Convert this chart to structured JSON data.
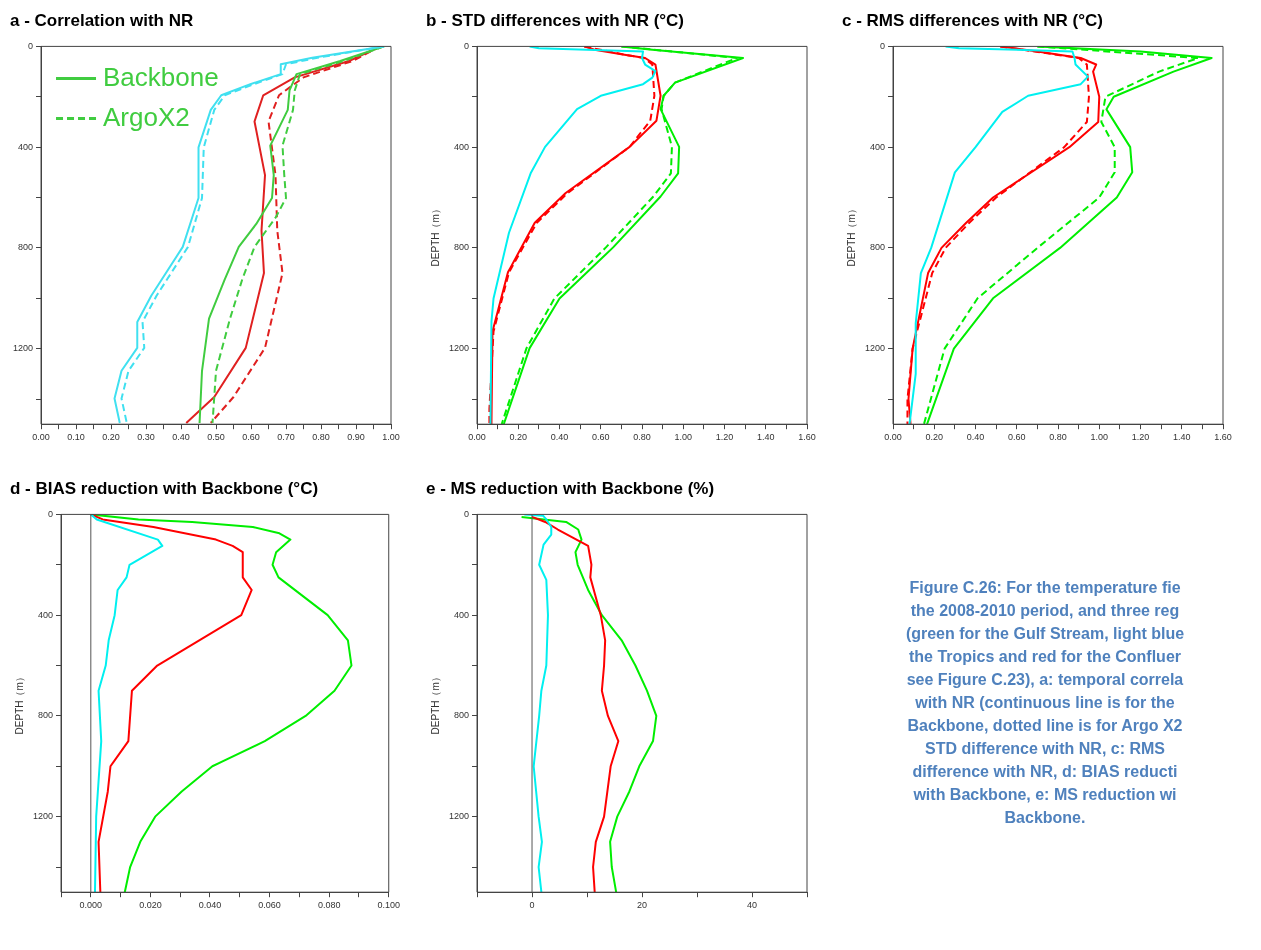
{
  "chart_data": [
    {
      "type": "line",
      "title": "a - Correlation with NR",
      "legend": "top left",
      "marker": "none",
      "xlim": [
        0,
        1
      ],
      "ylim": [
        1500,
        0
      ],
      "xticks": [
        {
          "value": 0,
          "label": "0.00"
        },
        {
          "value": 0.05,
          "label": null
        },
        {
          "value": 0.1,
          "label": "0.10"
        },
        {
          "value": 0.15,
          "label": null
        },
        {
          "value": 0.2,
          "label": "0.20"
        },
        {
          "value": 0.25,
          "label": null
        },
        {
          "value": 0.3,
          "label": "0.30"
        },
        {
          "value": 0.35,
          "label": null
        },
        {
          "value": 0.4,
          "label": "0.40"
        },
        {
          "value": 0.45,
          "label": null
        },
        {
          "value": 0.5,
          "label": "0.50"
        },
        {
          "value": 0.55,
          "label": null
        },
        {
          "value": 0.6,
          "label": "0.60"
        },
        {
          "value": 0.65,
          "label": null
        },
        {
          "value": 0.7,
          "label": "0.70"
        },
        {
          "value": 0.75,
          "label": null
        },
        {
          "value": 0.8,
          "label": "0.80"
        },
        {
          "value": 0.85,
          "label": null
        },
        {
          "value": 0.9,
          "label": "0.90"
        },
        {
          "value": 0.95,
          "label": null
        },
        {
          "value": 1,
          "label": "1.00"
        }
      ],
      "yticks": [
        0,
        {
          "value": 200,
          "label": null
        },
        400,
        {
          "value": 600,
          "label": null
        },
        800,
        {
          "value": 1000,
          "label": null
        },
        1200,
        {
          "value": 1400,
          "label": null
        }
      ],
      "series": [
        {
          "color": "#40e0f0",
          "line_style": "solid",
          "x": [
            0.98,
            0.775,
            0.685,
            0.685,
            0.6,
            0.515,
            0.485,
            0.45,
            0.45,
            0.405,
            0.315,
            0.275,
            0.275,
            0.23,
            0.21,
            0.225
          ],
          "values": [
            0,
            45,
            71,
            110,
            149,
            194,
            252,
            401,
            602,
            796,
            990,
            1094,
            1197,
            1288,
            1398,
            1495
          ]
        },
        {
          "color": "#40e0f0",
          "line_style": "dashed",
          "x": [
            0.98,
            0.79,
            0.7,
            0.69,
            0.61,
            0.525,
            0.495,
            0.465,
            0.46,
            0.42,
            0.33,
            0.29,
            0.295,
            0.25,
            0.23,
            0.245
          ],
          "values": [
            0,
            45,
            71,
            110,
            149,
            194,
            252,
            401,
            602,
            796,
            990,
            1094,
            1197,
            1288,
            1398,
            1495
          ]
        },
        {
          "name": "Backbone",
          "color": "#40cc40",
          "line_style": "solid",
          "x": [
            0.98,
            0.855,
            0.73,
            0.71,
            0.705,
            0.655,
            0.665,
            0.66,
            0.615,
            0.565,
            0.525,
            0.48,
            0.46,
            0.453
          ],
          "values": [
            0,
            58,
            110,
            175,
            252,
            394,
            511,
            602,
            705,
            796,
            925,
            1081,
            1288,
            1495
          ]
        },
        {
          "name": "ArgoX2",
          "color": "#40cc40",
          "line_style": "dashed",
          "x": [
            0.98,
            0.865,
            0.74,
            0.725,
            0.72,
            0.69,
            0.695,
            0.7,
            0.67,
            0.61,
            0.575,
            0.54,
            0.5,
            0.49
          ],
          "values": [
            0,
            58,
            110,
            175,
            252,
            394,
            511,
            602,
            680,
            796,
            925,
            1081,
            1288,
            1495
          ]
        },
        {
          "color": "#e02020",
          "line_style": "solid",
          "x": [
            0.97,
            0.88,
            0.725,
            0.635,
            0.61,
            0.64,
            0.63,
            0.637,
            0.585,
            0.495,
            0.415
          ],
          "values": [
            0,
            58,
            123,
            194,
            298,
            511,
            731,
            900,
            1197,
            1392,
            1495
          ]
        },
        {
          "color": "#e02020",
          "line_style": "dashed",
          "x": [
            0.97,
            0.89,
            0.75,
            0.68,
            0.65,
            0.67,
            0.675,
            0.69,
            0.64,
            0.55,
            0.485
          ],
          "values": [
            0,
            58,
            123,
            194,
            298,
            511,
            731,
            900,
            1197,
            1392,
            1495
          ]
        }
      ]
    },
    {
      "type": "line",
      "title": "b - STD differences with NR (°C)",
      "ylabel": "DEPTH（m）",
      "marker": "none",
      "xlim": [
        0,
        1.6
      ],
      "ylim": [
        1500,
        0
      ],
      "xticks": [
        {
          "value": 0,
          "label": "0.00"
        },
        {
          "value": 0.1,
          "label": null
        },
        {
          "value": 0.2,
          "label": "0.20"
        },
        {
          "value": 0.3,
          "label": null
        },
        {
          "value": 0.4,
          "label": "0.40"
        },
        {
          "value": 0.5,
          "label": null
        },
        {
          "value": 0.6,
          "label": "0.60"
        },
        {
          "value": 0.7,
          "label": null
        },
        {
          "value": 0.8,
          "label": "0.80"
        },
        {
          "value": 0.9,
          "label": null
        },
        {
          "value": 1,
          "label": "1.00"
        },
        {
          "value": 1.1,
          "label": null
        },
        {
          "value": 1.2,
          "label": "1.20"
        },
        {
          "value": 1.3,
          "label": null
        },
        {
          "value": 1.4,
          "label": "1.40"
        },
        {
          "value": 1.5,
          "label": null
        },
        {
          "value": 1.6,
          "label": "1.60"
        }
      ],
      "yticks": [
        0,
        {
          "value": 200,
          "label": null
        },
        400,
        {
          "value": 600,
          "label": null
        },
        800,
        {
          "value": 1000,
          "label": null
        },
        1200,
        {
          "value": 1400,
          "label": null
        }
      ],
      "series": [
        {
          "color": "#00f0f0",
          "line_style": "solid",
          "x": [
            0.255,
            0.3,
            0.805,
            0.8,
            0.815,
            0.865,
            0.85,
            0.805,
            0.6,
            0.485,
            0.33,
            0.26,
            0.155,
            0.08,
            0.07,
            0.065
          ],
          "values": [
            0,
            7,
            20,
            46,
            72,
            98,
            124,
            150,
            196,
            249,
            399,
            504,
            740,
            1001,
            1093,
            1499
          ]
        },
        {
          "color": "#ff0000",
          "line_style": "solid",
          "x": [
            0.52,
            0.57,
            0.715,
            0.815,
            0.865,
            0.89,
            0.87,
            0.74,
            0.43,
            0.28,
            0.15,
            0.075,
            0.07
          ],
          "values": [
            0,
            13,
            33,
            46,
            72,
            196,
            295,
            399,
            582,
            700,
            897,
            1132,
            1499
          ]
        },
        {
          "color": "#ff0000",
          "line_style": "dashed",
          "x": [
            0.52,
            0.715,
            0.81,
            0.85,
            0.86,
            0.84,
            0.74,
            0.44,
            0.29,
            0.155,
            0.08,
            0.06,
            0.06
          ],
          "values": [
            0,
            33,
            46,
            72,
            196,
            295,
            399,
            582,
            700,
            897,
            1132,
            1440,
            1499
          ]
        },
        {
          "color": "#00ee00",
          "line_style": "solid",
          "x": [
            0.7,
            0.85,
            1.29,
            0.96,
            0.905,
            0.89,
            0.98,
            0.975,
            0.89,
            0.66,
            0.4,
            0.255,
            0.13
          ],
          "values": [
            0,
            13,
            46,
            144,
            196,
            249,
            399,
            504,
            596,
            798,
            1001,
            1198,
            1499
          ]
        },
        {
          "color": "#00ee00",
          "line_style": "dashed",
          "x": [
            0.7,
            1.26,
            0.96,
            0.905,
            0.895,
            0.945,
            0.94,
            0.855,
            0.625,
            0.375,
            0.24,
            0.12
          ],
          "values": [
            0,
            46,
            144,
            196,
            249,
            399,
            504,
            596,
            798,
            1001,
            1198,
            1499
          ]
        }
      ]
    },
    {
      "type": "line",
      "title": "c - RMS differences with NR (°C)",
      "ylabel": "DEPTH（m）",
      "marker": "none",
      "xlim": [
        0,
        1.6
      ],
      "ylim": [
        1500,
        0
      ],
      "xticks": [
        {
          "value": 0,
          "label": "0.00"
        },
        {
          "value": 0.1,
          "label": null
        },
        {
          "value": 0.2,
          "label": "0.20"
        },
        {
          "value": 0.3,
          "label": null
        },
        {
          "value": 0.4,
          "label": "0.40"
        },
        {
          "value": 0.5,
          "label": null
        },
        {
          "value": 0.6,
          "label": "0.60"
        },
        {
          "value": 0.7,
          "label": null
        },
        {
          "value": 0.8,
          "label": "0.80"
        },
        {
          "value": 0.9,
          "label": null
        },
        {
          "value": 1,
          "label": "1.00"
        },
        {
          "value": 1.1,
          "label": null
        },
        {
          "value": 1.2,
          "label": "1.20"
        },
        {
          "value": 1.3,
          "label": null
        },
        {
          "value": 1.4,
          "label": "1.40"
        },
        {
          "value": 1.5,
          "label": null
        },
        {
          "value": 1.6,
          "label": "1.60"
        }
      ],
      "yticks": [
        0,
        {
          "value": 200,
          "label": null
        },
        400,
        {
          "value": 600,
          "label": null
        },
        800,
        {
          "value": 1000,
          "label": null
        },
        1200,
        {
          "value": 1400,
          "label": null
        }
      ],
      "series": [
        {
          "color": "#00f0f0",
          "line_style": "solid",
          "x": [
            0.255,
            0.32,
            0.87,
            0.88,
            0.885,
            0.945,
            0.91,
            0.655,
            0.53,
            0.4,
            0.3,
            0.185,
            0.135,
            0.11,
            0.11,
            0.08
          ],
          "values": [
            0,
            7,
            20,
            46,
            72,
            120,
            150,
            196,
            260,
            400,
            500,
            800,
            900,
            1100,
            1300,
            1500
          ]
        },
        {
          "color": "#ff0000",
          "line_style": "solid",
          "x": [
            0.52,
            0.7,
            0.91,
            0.985,
            0.97,
            1,
            0.995,
            0.855,
            0.485,
            0.355,
            0.235,
            0.17,
            0.095,
            0.075,
            0.085
          ],
          "values": [
            0,
            20,
            46,
            72,
            100,
            200,
            300,
            400,
            600,
            700,
            800,
            900,
            1200,
            1400,
            1500
          ]
        },
        {
          "color": "#ff0000",
          "line_style": "dashed",
          "x": [
            0.52,
            0.9,
            0.94,
            0.95,
            0.94,
            0.83,
            0.5,
            0.37,
            0.255,
            0.19,
            0.095,
            0.07,
            0.07
          ],
          "values": [
            0,
            46,
            72,
            200,
            300,
            400,
            600,
            700,
            800,
            900,
            1200,
            1400,
            1500
          ]
        },
        {
          "color": "#00ee00",
          "line_style": "solid",
          "x": [
            0.7,
            1.2,
            1.545,
            1.36,
            1.07,
            1.035,
            1.15,
            1.16,
            1.085,
            0.81,
            0.485,
            0.295,
            0.165
          ],
          "values": [
            0,
            20,
            46,
            100,
            200,
            250,
            400,
            500,
            600,
            800,
            1000,
            1200,
            1500
          ]
        },
        {
          "color": "#00ee00",
          "line_style": "dashed",
          "x": [
            0.7,
            1.48,
            1.29,
            1.03,
            1.01,
            1.075,
            1.075,
            1,
            0.7,
            0.41,
            0.25,
            0.15
          ],
          "values": [
            0,
            46,
            100,
            200,
            300,
            400,
            500,
            600,
            800,
            1000,
            1200,
            1500
          ]
        }
      ]
    },
    {
      "type": "line",
      "title": "d - BIAS reduction with Backbone (°C)",
      "ylabel": "DEPTH（m）",
      "marker": "none",
      "xlim": [
        -0.01,
        0.1
      ],
      "ylim": [
        1500,
        0
      ],
      "xticks": [
        {
          "value": -0.01,
          "label": null
        },
        {
          "value": 0,
          "label": "0.000"
        },
        {
          "value": 0.01,
          "label": null
        },
        {
          "value": 0.02,
          "label": "0.020"
        },
        {
          "value": 0.03,
          "label": null
        },
        {
          "value": 0.04,
          "label": "0.040"
        },
        {
          "value": 0.05,
          "label": null
        },
        {
          "value": 0.06,
          "label": "0.060"
        },
        {
          "value": 0.07,
          "label": null
        },
        {
          "value": 0.08,
          "label": "0.080"
        },
        {
          "value": 0.09,
          "label": null
        },
        {
          "value": 0.1,
          "label": "0.100"
        }
      ],
      "yticks": [
        0,
        {
          "value": 200,
          "label": null
        },
        400,
        {
          "value": 600,
          "label": null
        },
        800,
        {
          "value": 1000,
          "label": null
        },
        1200,
        {
          "value": 1400,
          "label": null
        }
      ],
      "ref_lines": [
        {
          "axis": "x",
          "value": 0,
          "color": "#555555"
        }
      ],
      "series": [
        {
          "color": "#00f0f0",
          "line_style": "solid",
          "x": [
            0,
            0.002,
            0.0225,
            0.024,
            0.013,
            0.012,
            0.009,
            0.008,
            0.006,
            0.005,
            0.0026,
            0.0035,
            0.0018,
            0.0014
          ],
          "values": [
            0,
            20,
            100,
            125,
            200,
            250,
            300,
            400,
            500,
            600,
            700,
            900,
            1200,
            1500
          ]
        },
        {
          "color": "#ff0000",
          "line_style": "solid",
          "x": [
            0,
            0.004,
            0.021,
            0.042,
            0.0476,
            0.051,
            0.051,
            0.054,
            0.0505,
            0.0223,
            0.0138,
            0.0126,
            0.0066,
            0.0057,
            0.0026,
            0.0032
          ],
          "values": [
            0,
            20,
            50,
            100,
            125,
            150,
            250,
            300,
            400,
            600,
            700,
            900,
            1000,
            1100,
            1300,
            1500
          ]
        },
        {
          "color": "#00ee00",
          "line_style": "solid",
          "x": [
            0,
            0.016,
            0.034,
            0.0544,
            0.0633,
            0.067,
            0.0622,
            0.061,
            0.063,
            0.0795,
            0.0863,
            0.0875,
            0.0818,
            0.0721,
            0.0584,
            0.0408,
            0.0305,
            0.0216,
            0.0166,
            0.0132,
            0.0114
          ],
          "values": [
            0,
            20,
            30,
            50,
            75,
            100,
            150,
            200,
            250,
            400,
            500,
            600,
            700,
            800,
            900,
            1000,
            1100,
            1200,
            1300,
            1400,
            1500
          ]
        }
      ]
    },
    {
      "type": "line",
      "title": "e - MS reduction with Backbone (%)",
      "ylabel": "DEPTH（m）",
      "marker": "none",
      "xlim": [
        -10,
        50
      ],
      "ylim": [
        1500,
        0
      ],
      "xticks": [
        {
          "value": -10,
          "label": null
        },
        0,
        {
          "value": 10,
          "label": null
        },
        20,
        {
          "value": 30,
          "label": null
        },
        40,
        {
          "value": 50,
          "label": null
        }
      ],
      "yticks": [
        0,
        {
          "value": 200,
          "label": null
        },
        400,
        {
          "value": 600,
          "label": null
        },
        800,
        {
          "value": 1000,
          "label": null
        },
        1200,
        {
          "value": 1400,
          "label": null
        }
      ],
      "ref_lines": [
        {
          "axis": "x",
          "value": 0,
          "color": "#555555"
        }
      ],
      "series": [
        {
          "color": "#00f0f0",
          "line_style": "solid",
          "x": [
            -1.4,
            2,
            2.6,
            3.5,
            3.5,
            2.1,
            1.3,
            2.6,
            2.9,
            2.6,
            1.7,
            1.3,
            0.3,
            1.2,
            1.8,
            1.2,
            1.7
          ],
          "values": [
            0,
            5,
            20,
            50,
            80,
            120,
            200,
            260,
            400,
            600,
            700,
            800,
            1000,
            1200,
            1300,
            1400,
            1500
          ]
        },
        {
          "color": "#ff0000",
          "line_style": "solid",
          "x": [
            0,
            2.4,
            4.7,
            10.2,
            10.8,
            10.6,
            12.5,
            13.3,
            13.1,
            12.7,
            13.8,
            15.7,
            14.3,
            13.1,
            11.6,
            11.1,
            11.4
          ],
          "values": [
            10,
            30,
            60,
            125,
            200,
            250,
            400,
            500,
            600,
            700,
            800,
            900,
            1000,
            1200,
            1300,
            1400,
            1500
          ]
        },
        {
          "color": "#00ee00",
          "line_style": "solid",
          "x": [
            -1.9,
            6.2,
            8.4,
            9,
            7.9,
            8.3,
            10.2,
            12.7,
            16.3,
            18.8,
            20.9,
            22.6,
            22,
            19.5,
            17.7,
            15.5,
            14.2,
            14.5,
            15.3
          ],
          "values": [
            10,
            30,
            60,
            100,
            150,
            200,
            300,
            400,
            500,
            600,
            700,
            800,
            900,
            1000,
            1100,
            1200,
            1300,
            1400,
            1500
          ]
        }
      ]
    },
    {
      "type": "other",
      "annotations": [
        "Figure C.26: For the temperature fie\nthe 2008-2010 period, and three reg\n(green for the Gulf Stream, light blue\nthe Tropics and red for the Confluer\nsee Figure C.23), a: temporal correla\nwith NR (continuous line is for the\nBackbone, dotted line is for Argo X2\nSTD difference with NR, c: RMS\ndifference with NR, d: BIAS reducti\nwith Backbone, e: MS reduction wi\nBackbone."
      ]
    }
  ]
}
